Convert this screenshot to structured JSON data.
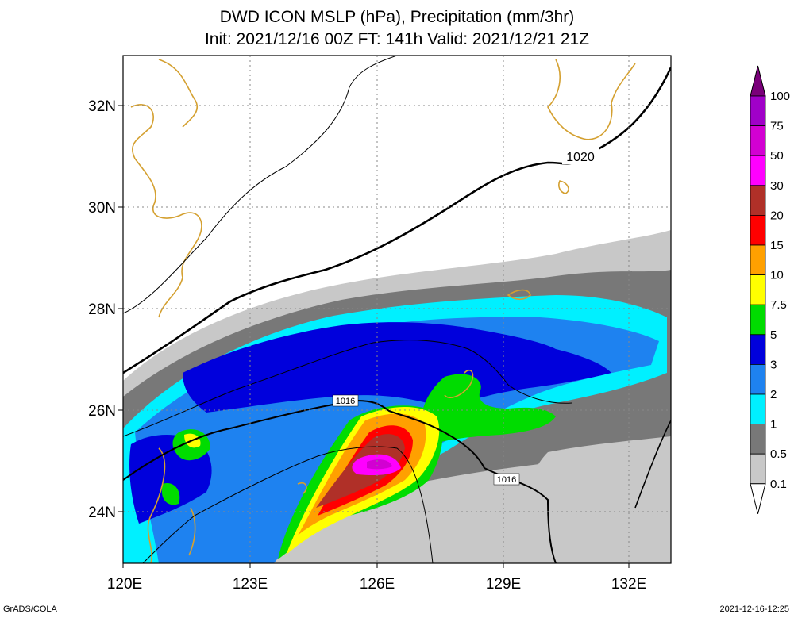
{
  "title_line1": "DWD ICON MSLP (hPa), Precipitation (mm/3hr)",
  "title_line2": "Init: 2021/12/16 00Z  FT: 141h  Valid: 2021/12/21 21Z",
  "axes": {
    "lat_labels": [
      "32N",
      "30N",
      "28N",
      "26N",
      "24N"
    ],
    "lon_labels": [
      "120E",
      "123E",
      "126E",
      "129E",
      "132E"
    ]
  },
  "isobar_labels": [
    "1020",
    "1016",
    "1016"
  ],
  "colorbar": {
    "labels": [
      "100",
      "75",
      "50",
      "30",
      "20",
      "15",
      "10",
      "7.5",
      "5",
      "3",
      "2",
      "1",
      "0.5",
      "0.1"
    ],
    "colors": [
      "#7a007a",
      "#a000c8",
      "#d200d2",
      "#ff00ff",
      "#b03028",
      "#ff0000",
      "#ffa000",
      "#ffff00",
      "#00dc00",
      "#0000dc",
      "#1e82f0",
      "#00f0ff",
      "#787878",
      "#c8c8c8",
      "#ffffff"
    ]
  },
  "footer": {
    "left": "GrADS/COLA",
    "right": "2021-12-16-12:25"
  }
}
